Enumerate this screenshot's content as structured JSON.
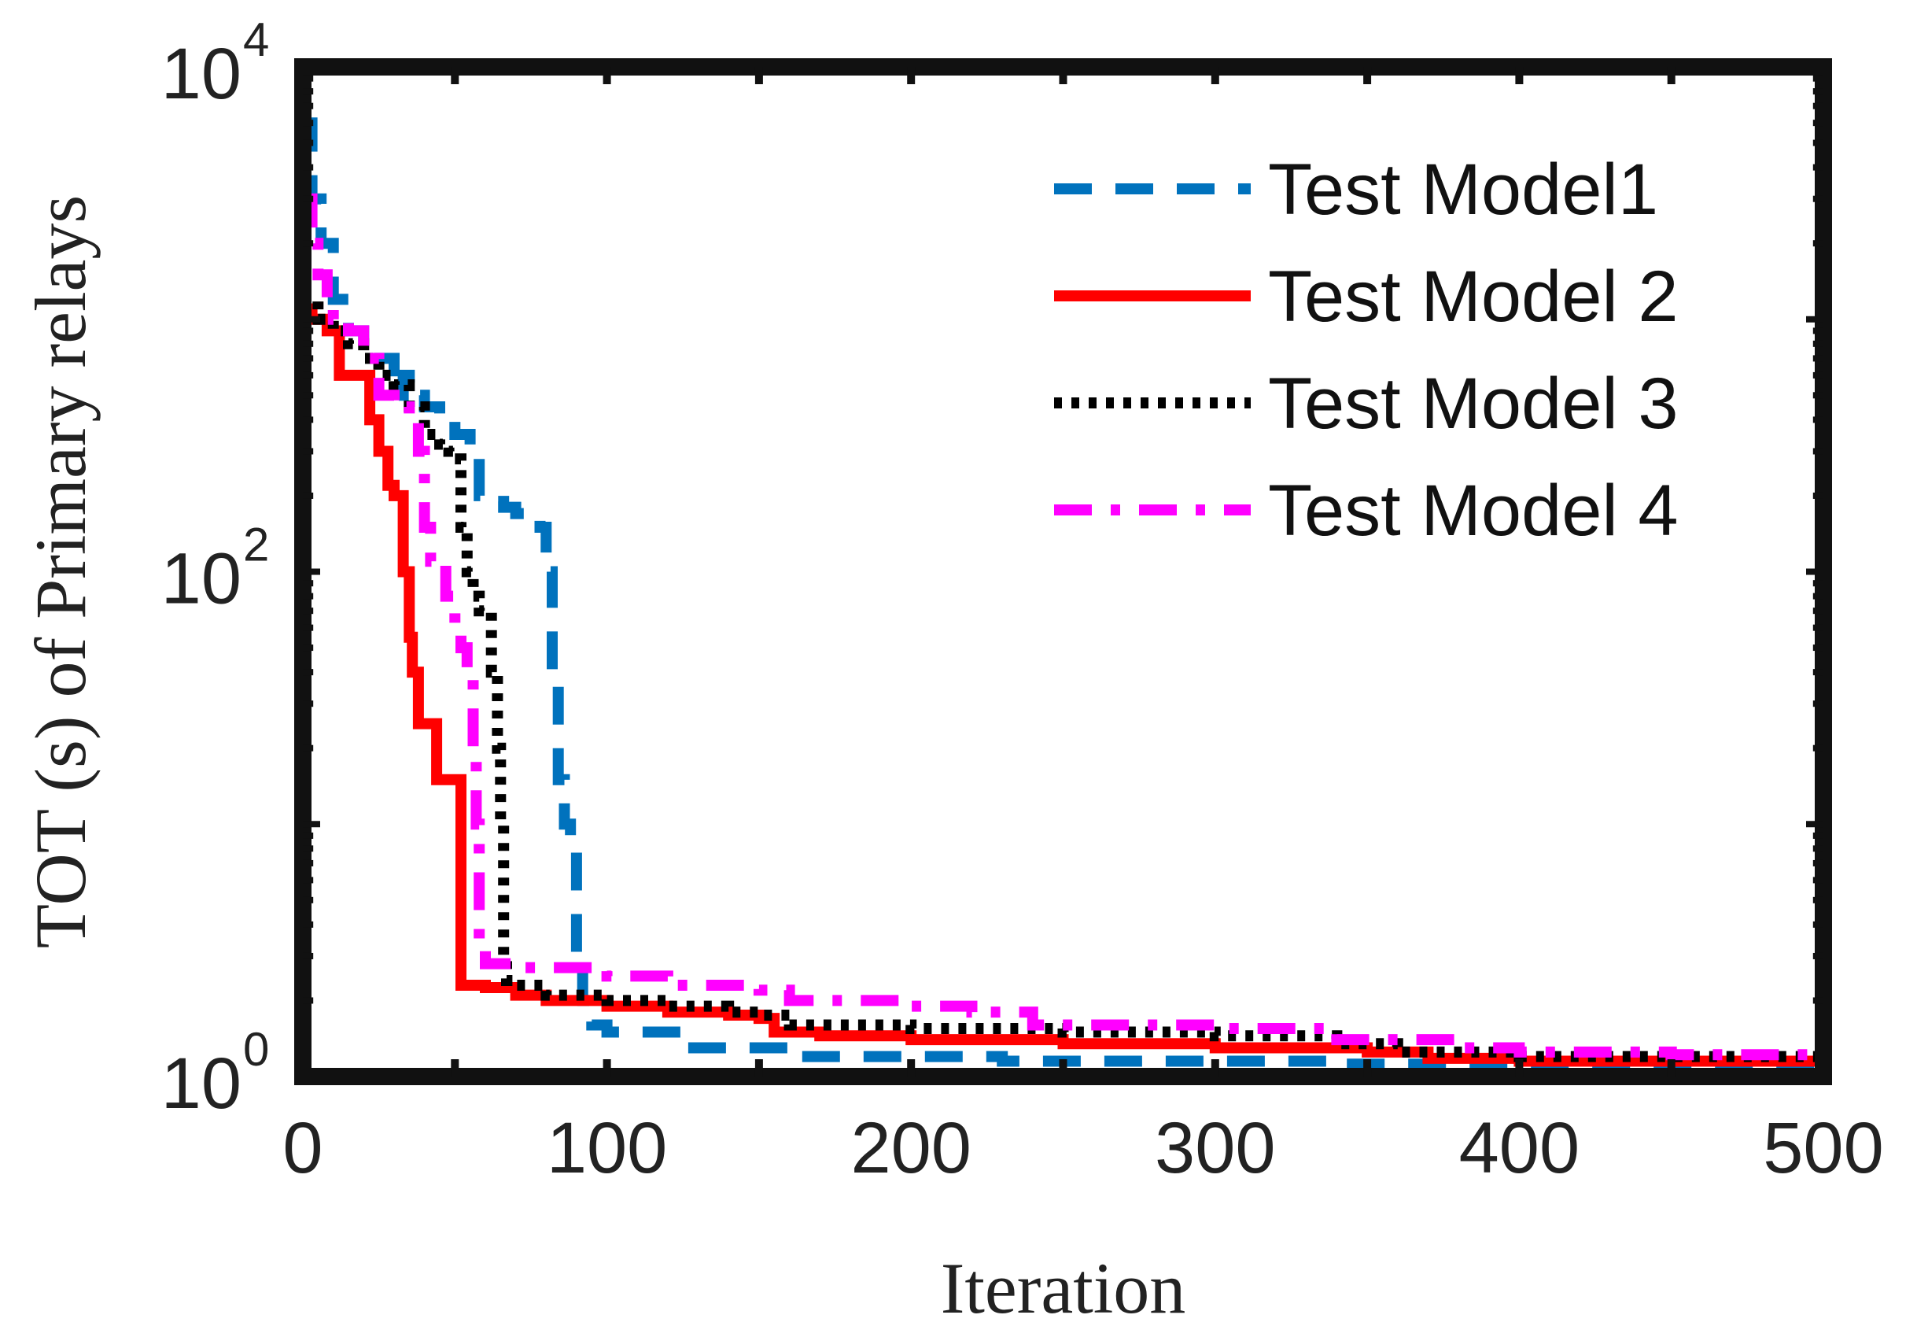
{
  "chart_data": {
    "type": "line",
    "title": "",
    "xlabel": "Iteration",
    "ylabel": "TOT (s) of Primary relays",
    "yscale": "log",
    "xlim": [
      0,
      500
    ],
    "ylim": [
      1,
      10000
    ],
    "xticks": [
      "0",
      "100",
      "200",
      "300",
      "400",
      "500"
    ],
    "yticks": [
      {
        "base": "10",
        "exp": "0",
        "value": 1
      },
      {
        "base": "10",
        "exp": "2",
        "value": 100
      },
      {
        "base": "10",
        "exp": "4",
        "value": 10000
      }
    ],
    "legend_position": "top-right",
    "series": [
      {
        "name": "Test Model1",
        "color": "#0072BD",
        "style": "dashed",
        "points": [
          [
            0,
            6000
          ],
          [
            2,
            6000
          ],
          [
            3,
            3000
          ],
          [
            6,
            2000
          ],
          [
            10,
            1200
          ],
          [
            15,
            900
          ],
          [
            20,
            700
          ],
          [
            30,
            500
          ],
          [
            33,
            600
          ],
          [
            35,
            500
          ],
          [
            40,
            450
          ],
          [
            45,
            400
          ],
          [
            50,
            350
          ],
          [
            55,
            300
          ],
          [
            58,
            200
          ],
          [
            62,
            190
          ],
          [
            66,
            180
          ],
          [
            70,
            170
          ],
          [
            75,
            160
          ],
          [
            78,
            150
          ],
          [
            80,
            100
          ],
          [
            82,
            40
          ],
          [
            84,
            15
          ],
          [
            86,
            10
          ],
          [
            88,
            8
          ],
          [
            90,
            3
          ],
          [
            92,
            2
          ],
          [
            95,
            1.6
          ],
          [
            100,
            1.5
          ],
          [
            110,
            1.5
          ],
          [
            120,
            1.5
          ],
          [
            125,
            1.3
          ],
          [
            130,
            1.3
          ],
          [
            140,
            1.3
          ],
          [
            160,
            1.2
          ],
          [
            180,
            1.2
          ],
          [
            200,
            1.2
          ],
          [
            230,
            1.15
          ],
          [
            260,
            1.15
          ],
          [
            300,
            1.15
          ],
          [
            340,
            1.12
          ],
          [
            380,
            1.12
          ],
          [
            420,
            1.12
          ],
          [
            460,
            1.12
          ],
          [
            500,
            1.12
          ]
        ]
      },
      {
        "name": "Test Model 2",
        "color": "#FF0000",
        "style": "solid",
        "points": [
          [
            0,
            1100
          ],
          [
            3,
            1000
          ],
          [
            8,
            900
          ],
          [
            10,
            900
          ],
          [
            12,
            600
          ],
          [
            15,
            600
          ],
          [
            20,
            600
          ],
          [
            22,
            400
          ],
          [
            25,
            300
          ],
          [
            28,
            220
          ],
          [
            30,
            200
          ],
          [
            33,
            100
          ],
          [
            35,
            55
          ],
          [
            36,
            40
          ],
          [
            38,
            25
          ],
          [
            40,
            25
          ],
          [
            42,
            25
          ],
          [
            44,
            15
          ],
          [
            48,
            15
          ],
          [
            50,
            15
          ],
          [
            52,
            2.3
          ],
          [
            55,
            2.3
          ],
          [
            60,
            2.25
          ],
          [
            70,
            2.1
          ],
          [
            80,
            2.0
          ],
          [
            100,
            1.9
          ],
          [
            120,
            1.8
          ],
          [
            140,
            1.75
          ],
          [
            150,
            1.7
          ],
          [
            155,
            1.5
          ],
          [
            170,
            1.45
          ],
          [
            200,
            1.4
          ],
          [
            250,
            1.35
          ],
          [
            300,
            1.3
          ],
          [
            350,
            1.25
          ],
          [
            370,
            1.18
          ],
          [
            400,
            1.15
          ],
          [
            450,
            1.15
          ],
          [
            500,
            1.14
          ]
        ]
      },
      {
        "name": "Test Model 3",
        "color": "#000000",
        "style": "dotted",
        "points": [
          [
            0,
            1200
          ],
          [
            5,
            1000
          ],
          [
            10,
            900
          ],
          [
            15,
            800
          ],
          [
            20,
            700
          ],
          [
            25,
            600
          ],
          [
            30,
            550
          ],
          [
            35,
            450
          ],
          [
            40,
            350
          ],
          [
            45,
            320
          ],
          [
            48,
            300
          ],
          [
            50,
            280
          ],
          [
            52,
            150
          ],
          [
            54,
            100
          ],
          [
            56,
            80
          ],
          [
            58,
            70
          ],
          [
            60,
            70
          ],
          [
            62,
            40
          ],
          [
            64,
            20
          ],
          [
            65,
            10
          ],
          [
            66,
            3
          ],
          [
            67,
            2.4
          ],
          [
            70,
            2.3
          ],
          [
            80,
            2.1
          ],
          [
            100,
            2.0
          ],
          [
            120,
            1.9
          ],
          [
            140,
            1.8
          ],
          [
            150,
            1.75
          ],
          [
            160,
            1.6
          ],
          [
            180,
            1.6
          ],
          [
            200,
            1.55
          ],
          [
            250,
            1.5
          ],
          [
            300,
            1.45
          ],
          [
            340,
            1.35
          ],
          [
            360,
            1.25
          ],
          [
            400,
            1.2
          ],
          [
            450,
            1.2
          ],
          [
            500,
            1.2
          ]
        ]
      },
      {
        "name": "Test Model 4",
        "color": "#FF00FF",
        "style": "dashdot",
        "points": [
          [
            0,
            3000
          ],
          [
            3,
            2000
          ],
          [
            5,
            1500
          ],
          [
            8,
            1200
          ],
          [
            10,
            1000
          ],
          [
            15,
            900
          ],
          [
            20,
            700
          ],
          [
            25,
            500
          ],
          [
            30,
            450
          ],
          [
            35,
            400
          ],
          [
            38,
            300
          ],
          [
            40,
            150
          ],
          [
            42,
            110
          ],
          [
            45,
            110
          ],
          [
            47,
            80
          ],
          [
            50,
            60
          ],
          [
            52,
            50
          ],
          [
            54,
            40
          ],
          [
            56,
            20
          ],
          [
            57,
            10
          ],
          [
            58,
            3.5
          ],
          [
            60,
            2.8
          ],
          [
            70,
            2.7
          ],
          [
            80,
            2.7
          ],
          [
            100,
            2.5
          ],
          [
            120,
            2.3
          ],
          [
            150,
            2.2
          ],
          [
            160,
            2.0
          ],
          [
            200,
            1.9
          ],
          [
            220,
            1.8
          ],
          [
            240,
            1.6
          ],
          [
            280,
            1.6
          ],
          [
            300,
            1.55
          ],
          [
            340,
            1.4
          ],
          [
            380,
            1.3
          ],
          [
            400,
            1.25
          ],
          [
            450,
            1.22
          ],
          [
            500,
            1.22
          ]
        ]
      }
    ]
  }
}
